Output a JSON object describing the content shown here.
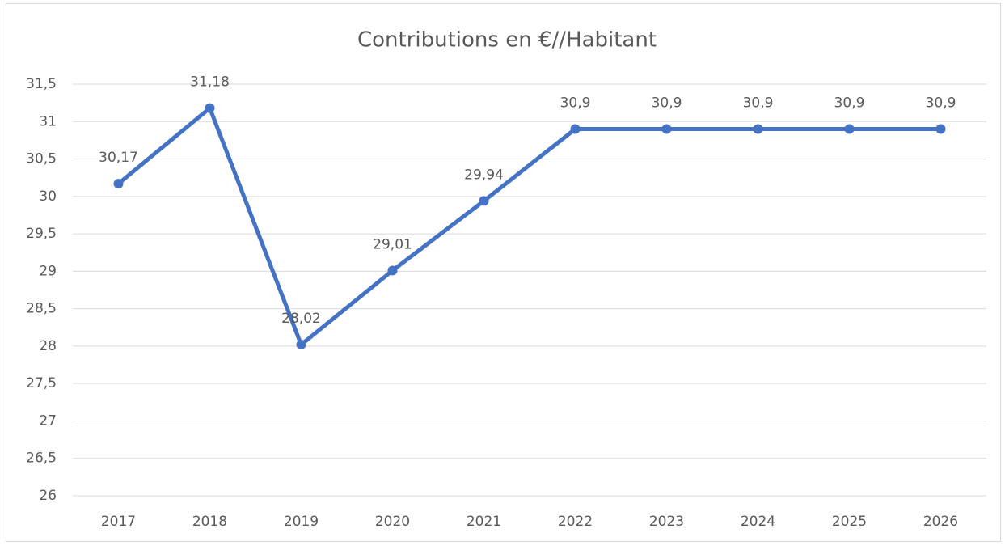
{
  "chart_data": {
    "type": "line",
    "title": "Contributions en €//Habitant",
    "categories": [
      "2017",
      "2018",
      "2019",
      "2020",
      "2021",
      "2022",
      "2023",
      "2024",
      "2025",
      "2026"
    ],
    "series": [
      {
        "name": "Contributions en €//Habitant",
        "color": "#4472c4",
        "values": [
          30.17,
          31.18,
          28.02,
          29.01,
          29.94,
          30.9,
          30.9,
          30.9,
          30.9,
          30.9
        ],
        "value_labels": [
          "30,17",
          "31,18",
          "28,02",
          "29,01",
          "29,94",
          "30,9",
          "30,9",
          "30,9",
          "30,9",
          "30,9"
        ]
      }
    ],
    "ylim": [
      26,
      31.5
    ],
    "yticks": [
      26,
      {
        "value": 26.5,
        "label": "26,5"
      },
      27,
      {
        "value": 27.5,
        "label": "27,5"
      },
      28,
      {
        "value": 28.5,
        "label": "28,5"
      },
      29,
      {
        "value": 29.5,
        "label": "29,5"
      },
      30,
      {
        "value": 30.5,
        "label": "30,5"
      },
      31,
      {
        "value": 31.5,
        "label": "31,5"
      }
    ],
    "grid": true
  }
}
